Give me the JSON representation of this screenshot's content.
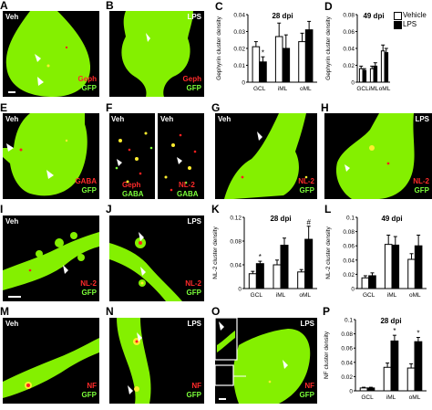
{
  "panels": [
    {
      "id": "A",
      "letter": "A",
      "texts": [
        {
          "t": "Veh",
          "c": "w"
        },
        {
          "t": "Geph",
          "c": "r"
        },
        {
          "t": "GFP",
          "c": "g"
        }
      ]
    },
    {
      "id": "B",
      "letter": "B",
      "texts": [
        {
          "t": "LPS",
          "c": "w"
        },
        {
          "t": "Geph",
          "c": "r"
        },
        {
          "t": "GFP",
          "c": "g"
        }
      ]
    },
    {
      "id": "E",
      "letter": "E",
      "texts": [
        {
          "t": "Veh",
          "c": "w"
        },
        {
          "t": "GABA",
          "c": "r"
        },
        {
          "t": "GFP",
          "c": "g"
        }
      ]
    },
    {
      "id": "F",
      "letter": "F",
      "texts": [
        {
          "t": "Veh",
          "c": "w"
        },
        {
          "t": "Geph",
          "c": "r"
        },
        {
          "t": "GABA",
          "c": "g"
        },
        {
          "t": "Veh",
          "c": "w"
        },
        {
          "t": "NL-2",
          "c": "r"
        },
        {
          "t": "GABA",
          "c": "g"
        }
      ]
    },
    {
      "id": "G",
      "letter": "G",
      "texts": [
        {
          "t": "Veh",
          "c": "w"
        },
        {
          "t": "NL-2",
          "c": "r"
        },
        {
          "t": "GFP",
          "c": "g"
        }
      ]
    },
    {
      "id": "H",
      "letter": "H",
      "texts": [
        {
          "t": "LPS",
          "c": "w"
        },
        {
          "t": "NL-2",
          "c": "r"
        },
        {
          "t": "GFP",
          "c": "g"
        }
      ]
    },
    {
      "id": "I",
      "letter": "I",
      "texts": [
        {
          "t": "Veh",
          "c": "w"
        },
        {
          "t": "NL-2",
          "c": "r"
        },
        {
          "t": "GFP",
          "c": "g"
        }
      ]
    },
    {
      "id": "J",
      "letter": "J",
      "texts": [
        {
          "t": "LPS",
          "c": "w"
        },
        {
          "t": "NL-2",
          "c": "r"
        },
        {
          "t": "GFP",
          "c": "g"
        }
      ]
    },
    {
      "id": "M",
      "letter": "M",
      "texts": [
        {
          "t": "Veh",
          "c": "w"
        },
        {
          "t": "NF",
          "c": "r"
        },
        {
          "t": "GFP",
          "c": "g"
        }
      ]
    },
    {
      "id": "N",
      "letter": "N",
      "texts": [
        {
          "t": "LPS",
          "c": "w"
        },
        {
          "t": "NF",
          "c": "r"
        },
        {
          "t": "GFP",
          "c": "g"
        }
      ]
    },
    {
      "id": "O",
      "letter": "O",
      "texts": [
        {
          "t": "LPS",
          "c": "w"
        },
        {
          "t": "NF",
          "c": "r"
        },
        {
          "t": "GFP",
          "c": "g"
        }
      ]
    }
  ],
  "legend": {
    "vehicle": "Vehicle",
    "lps": "LPS"
  },
  "colors": {
    "vehicle": "#ffffff",
    "lps": "#000000",
    "gfp": "#84f000",
    "punct_red": "#ff2020",
    "punct_yellow": "#ffee30"
  },
  "chart_data": [
    {
      "id": "C",
      "letter": "C",
      "type": "bar",
      "title": "28 dpi",
      "ylabel": "Gephyrin cluster density",
      "categories": [
        "GCL",
        "iML",
        "oML"
      ],
      "ylim": [
        0,
        0.04
      ],
      "yticks": [
        "0",
        "0.01",
        "0.02",
        "0.03",
        "0.04"
      ],
      "series": [
        {
          "name": "Vehicle",
          "values": [
            0.021,
            0.027,
            0.024
          ],
          "err": [
            0.003,
            0.008,
            0.005
          ]
        },
        {
          "name": "LPS",
          "values": [
            0.012,
            0.02,
            0.031
          ],
          "err": [
            0.003,
            0.008,
            0.005
          ]
        }
      ],
      "marks": [
        {
          "cat": 0,
          "series": 1,
          "text": "*"
        }
      ]
    },
    {
      "id": "D",
      "letter": "D",
      "type": "bar",
      "title": "49 dpi",
      "ylabel": "Gephyrin cluster density",
      "categories": [
        "GCL",
        "iML",
        "oML"
      ],
      "ylim": [
        0,
        0.08
      ],
      "yticks": [
        "0",
        "0.02",
        "0.04",
        "0.06",
        "0.08"
      ],
      "series": [
        {
          "name": "Vehicle",
          "values": [
            0.016,
            0.016,
            0.037
          ],
          "err": [
            0.003,
            0.003,
            0.007
          ]
        },
        {
          "name": "LPS",
          "values": [
            0.014,
            0.019,
            0.035
          ],
          "err": [
            0.002,
            0.004,
            0.005
          ]
        }
      ],
      "marks": []
    },
    {
      "id": "K",
      "letter": "K",
      "type": "bar",
      "title": "28 dpi",
      "ylabel": "NL-2 cluster density",
      "categories": [
        "GCL",
        "iML",
        "oML"
      ],
      "ylim": [
        0,
        0.12
      ],
      "yticks": [
        "0",
        "0.04",
        "0.08",
        "0.12"
      ],
      "series": [
        {
          "name": "Vehicle",
          "values": [
            0.025,
            0.04,
            0.028
          ],
          "err": [
            0.004,
            0.008,
            0.004
          ]
        },
        {
          "name": "LPS",
          "values": [
            0.042,
            0.073,
            0.083
          ],
          "err": [
            0.004,
            0.012,
            0.022
          ]
        }
      ],
      "marks": [
        {
          "cat": 0,
          "series": 1,
          "text": "*"
        },
        {
          "cat": 2,
          "series": 1,
          "text": "#"
        }
      ]
    },
    {
      "id": "L",
      "letter": "L",
      "type": "bar",
      "title": "49 dpi",
      "ylabel": "NL-2 cluster density",
      "categories": [
        "GCL",
        "iML",
        "oML"
      ],
      "ylim": [
        0,
        0.1
      ],
      "yticks": [
        "0",
        "0.02",
        "0.04",
        "0.06",
        "0.08",
        "0.1"
      ],
      "series": [
        {
          "name": "Vehicle",
          "values": [
            0.015,
            0.062,
            0.041
          ],
          "err": [
            0.003,
            0.013,
            0.008
          ]
        },
        {
          "name": "LPS",
          "values": [
            0.018,
            0.061,
            0.06
          ],
          "err": [
            0.004,
            0.012,
            0.015
          ]
        }
      ],
      "marks": []
    },
    {
      "id": "P",
      "letter": "P",
      "type": "bar",
      "title": "28 dpi",
      "ylabel": "NF cluster density",
      "categories": [
        "GCL",
        "iML",
        "oML"
      ],
      "ylim": [
        0,
        0.1
      ],
      "yticks": [
        "0",
        "0.02",
        "0.04",
        "0.06",
        "0.08",
        "0.1"
      ],
      "series": [
        {
          "name": "Vehicle",
          "values": [
            0.004,
            0.033,
            0.032
          ],
          "err": [
            0.001,
            0.006,
            0.006
          ]
        },
        {
          "name": "LPS",
          "values": [
            0.004,
            0.07,
            0.069
          ],
          "err": [
            0.001,
            0.008,
            0.006
          ]
        }
      ],
      "marks": [
        {
          "cat": 1,
          "series": 1,
          "text": "*"
        },
        {
          "cat": 2,
          "series": 1,
          "text": "*"
        }
      ]
    }
  ]
}
